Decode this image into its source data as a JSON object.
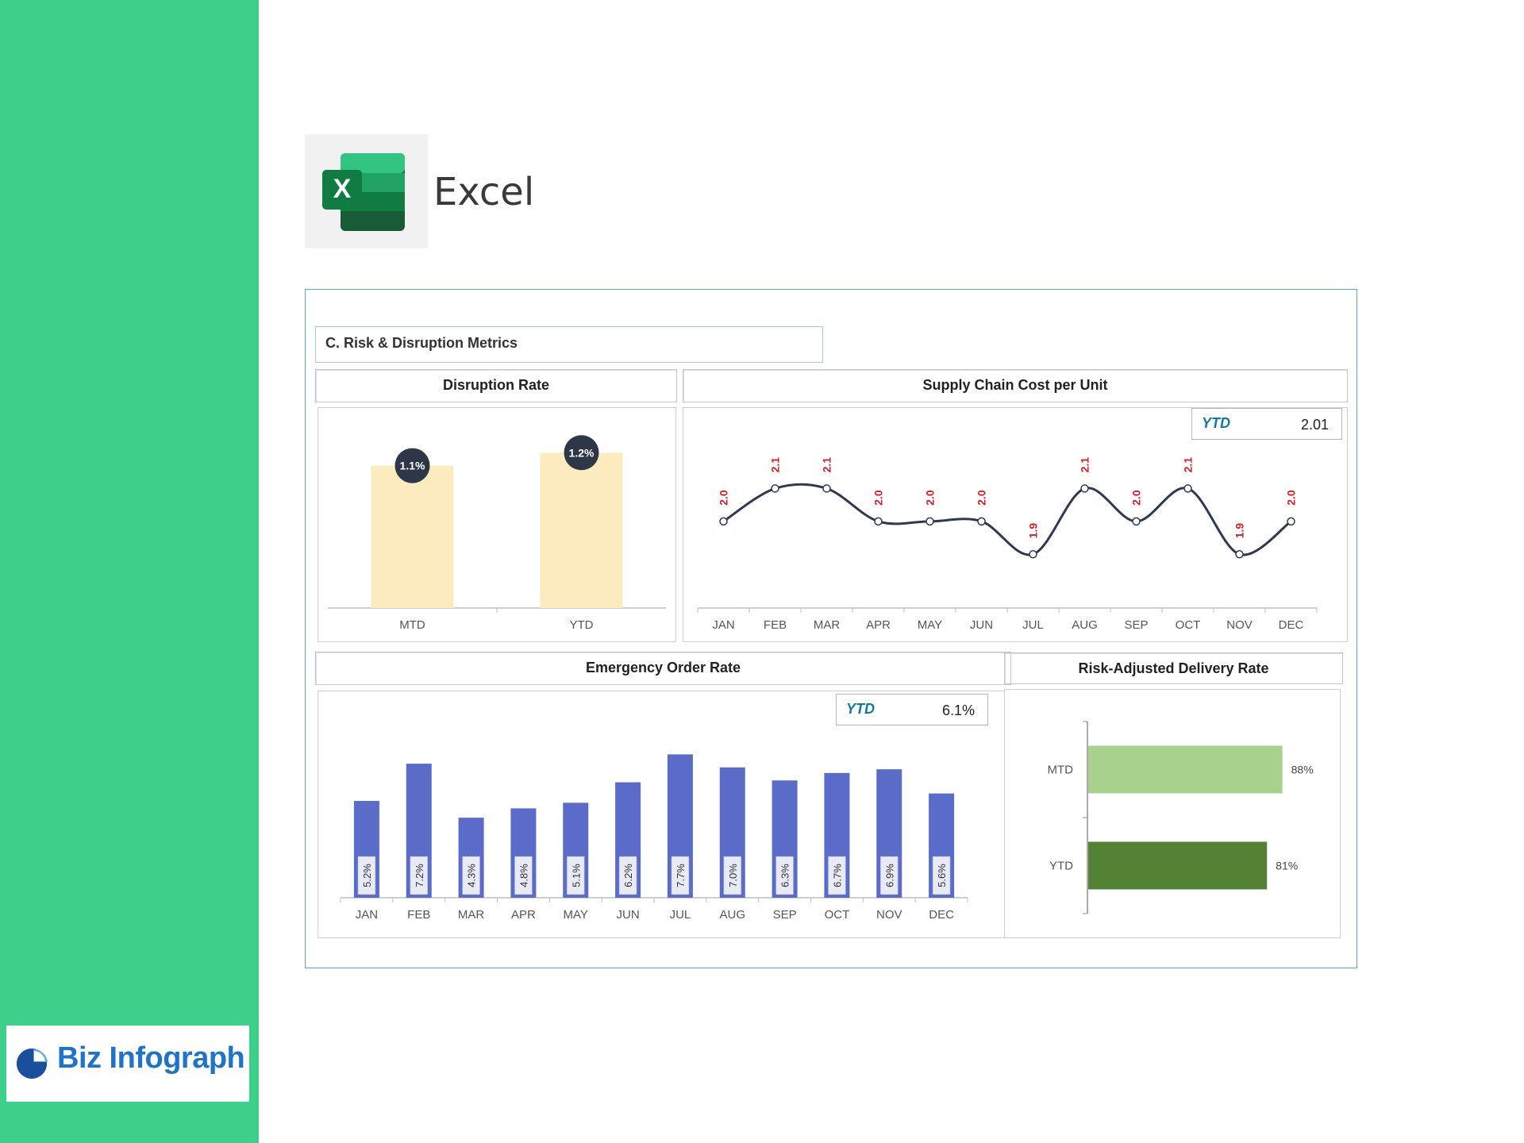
{
  "app": {
    "title": "Excel"
  },
  "brand": {
    "name": "Biz Infograph"
  },
  "dashboard": {
    "section_title": "C. Risk & Disruption Metrics",
    "disruption_rate": {
      "title": "Disruption Rate",
      "chart_data": {
        "type": "bar",
        "categories": [
          "MTD",
          "YTD"
        ],
        "values": [
          1.1,
          1.2
        ],
        "labels": [
          "1.1%",
          "1.2%"
        ],
        "color": "#fdebc0",
        "marker_color": "#2d3748"
      }
    },
    "supply_chain_cost": {
      "title": "Supply Chain Cost per Unit",
      "ytd_label": "YTD",
      "ytd_value": "2.01",
      "chart_data": {
        "type": "line",
        "categories": [
          "JAN",
          "FEB",
          "MAR",
          "APR",
          "MAY",
          "JUN",
          "JUL",
          "AUG",
          "SEP",
          "OCT",
          "NOV",
          "DEC"
        ],
        "values": [
          2.0,
          2.1,
          2.1,
          2.0,
          2.0,
          2.0,
          1.9,
          2.1,
          2.0,
          2.1,
          1.9,
          2.0
        ],
        "labels": [
          "2.0",
          "2.1",
          "2.1",
          "2.0",
          "2.0",
          "2.0",
          "1.9",
          "2.1",
          "2.0",
          "2.1",
          "1.9",
          "2.0"
        ],
        "line_color": "#2e3a4f",
        "label_color": "#d0202a"
      }
    },
    "emergency_order_rate": {
      "title": "Emergency Order Rate",
      "ytd_label": "YTD",
      "ytd_value": "6.1%",
      "chart_data": {
        "type": "bar",
        "categories": [
          "JAN",
          "FEB",
          "MAR",
          "APR",
          "MAY",
          "JUN",
          "JUL",
          "AUG",
          "SEP",
          "OCT",
          "NOV",
          "DEC"
        ],
        "values": [
          5.2,
          7.2,
          4.3,
          4.8,
          5.1,
          6.2,
          7.7,
          7.0,
          6.3,
          6.7,
          6.9,
          5.6
        ],
        "labels": [
          "5.2%",
          "7.2%",
          "4.3%",
          "4.8%",
          "5.1%",
          "6.2%",
          "7.7%",
          "7.0%",
          "6.3%",
          "6.7%",
          "6.9%",
          "5.6%"
        ],
        "color": "#5b6cc8"
      }
    },
    "risk_adjusted_delivery": {
      "title": "Risk-Adjusted Delivery Rate",
      "chart_data": {
        "type": "bar",
        "orientation": "horizontal",
        "categories": [
          "MTD",
          "YTD"
        ],
        "values": [
          88,
          81
        ],
        "labels": [
          "88%",
          "81%"
        ],
        "colors": [
          "#a9d18e",
          "#548235"
        ]
      }
    }
  }
}
